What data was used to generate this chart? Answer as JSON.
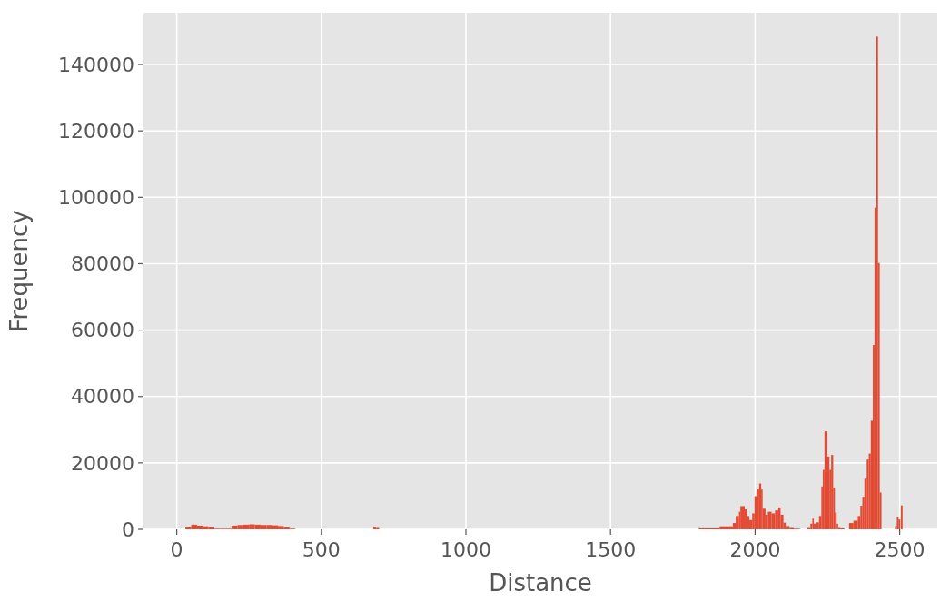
{
  "chart_data": {
    "type": "histogram",
    "xlabel": "Distance",
    "ylabel": "Frequency",
    "color": "#e24a33",
    "bins": [
      30,
      50,
      70,
      90,
      110,
      130,
      150,
      170,
      190,
      210,
      230,
      250,
      270,
      290,
      310,
      330,
      350,
      370,
      390,
      410,
      680,
      690,
      700,
      1805,
      1877,
      1923,
      1933,
      1944,
      1949,
      1964,
      1972,
      1980,
      1990,
      1998,
      2005,
      2014,
      2021,
      2026,
      2036,
      2044,
      2057,
      2069,
      2080,
      2088,
      2098,
      2106,
      2119,
      2134,
      2155,
      2180,
      2191,
      2198,
      2203,
      2211,
      2221,
      2229,
      2234,
      2240,
      2250,
      2257,
      2263,
      2270,
      2276,
      2282,
      2287,
      2294,
      2309,
      2325,
      2340,
      2355,
      2364,
      2371,
      2378,
      2386,
      2393,
      2400,
      2407,
      2413,
      2419,
      2425,
      2431,
      2437,
      2484,
      2490,
      2496,
      2502,
      2504,
      2510
    ],
    "values": [
      600,
      1400,
      1100,
      900,
      700,
      200,
      200,
      200,
      1100,
      1300,
      1400,
      1500,
      1400,
      1300,
      1300,
      1200,
      1000,
      600,
      200,
      0,
      800,
      400,
      0,
      300,
      900,
      1900,
      4000,
      5300,
      7000,
      6000,
      4000,
      2800,
      4800,
      10000,
      12000,
      13800,
      12000,
      6200,
      4400,
      5300,
      4800,
      5700,
      6600,
      4400,
      2000,
      1000,
      400,
      200,
      null,
      400,
      1700,
      3200,
      1700,
      2100,
      4000,
      12900,
      17900,
      29500,
      21900,
      17900,
      22400,
      12600,
      5100,
      1700,
      400,
      300,
      0,
      1900,
      2600,
      4000,
      7100,
      9800,
      15200,
      21000,
      22800,
      32700,
      55500,
      96900,
      148400,
      80200,
      11100,
      0,
      1000,
      3700,
      3000,
      0,
      7200
    ],
    "xlim": [
      -115,
      2630
    ],
    "ylim": [
      0,
      155600
    ],
    "xticks": [
      0,
      500,
      1000,
      1500,
      2000,
      2500
    ],
    "yticks": [
      0,
      20000,
      40000,
      60000,
      80000,
      100000,
      120000,
      140000
    ],
    "grid": true
  }
}
